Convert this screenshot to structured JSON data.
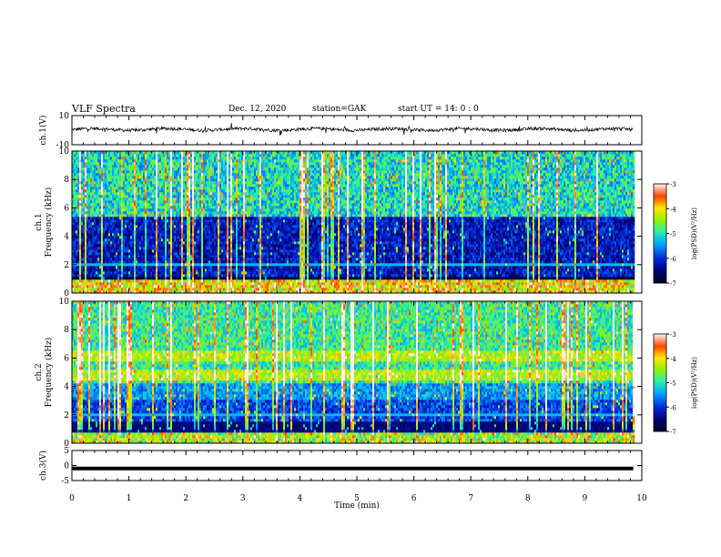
{
  "header": {
    "title": "VLF Spectra",
    "date": "Dec. 12, 2020",
    "station": "station=GAK",
    "start": "start  UT =   14: 0  : 0"
  },
  "chart_data": [
    {
      "type": "line",
      "name": "ch1-waveform",
      "ylabel": "ch.1(V)",
      "ylim": [
        -10,
        10
      ],
      "yticks": [
        "10",
        "-10"
      ],
      "xlim": [
        0,
        10
      ]
    },
    {
      "type": "heatmap",
      "name": "ch1-spectrogram",
      "ylabel": "ch.1\nFrequency (kHz)",
      "ylim": [
        0,
        10
      ],
      "yticks": [
        "0",
        "2",
        "4",
        "6",
        "8",
        "10"
      ],
      "xlim": [
        0,
        10
      ],
      "colorbar": {
        "label": "log(PSD)(V²/Hz)",
        "range": [
          -7,
          -3
        ],
        "ticks": [
          "-7",
          "-6",
          "-5",
          "-4",
          "-3"
        ]
      }
    },
    {
      "type": "heatmap",
      "name": "ch2-spectrogram",
      "ylabel": "ch.2\nFrequency (kHz)",
      "ylim": [
        0,
        10
      ],
      "yticks": [
        "0",
        "2",
        "4",
        "6",
        "8",
        "10"
      ],
      "xlim": [
        0,
        10
      ],
      "colorbar": {
        "label": "log(PSD)(V²/Hz)",
        "range": [
          -7,
          -3
        ],
        "ticks": [
          "-7",
          "-6",
          "-5",
          "-4",
          "-3"
        ]
      }
    },
    {
      "type": "line",
      "name": "ch3-waveform",
      "ylabel": "ch.3(V)",
      "ylim": [
        -5,
        5
      ],
      "yticks": [
        "5",
        "0",
        "-5"
      ],
      "xlim": [
        0,
        10
      ],
      "value": -1,
      "xlabel": "Time (min)",
      "xticks": [
        "0",
        "1",
        "2",
        "3",
        "4",
        "5",
        "6",
        "7",
        "8",
        "9",
        "10"
      ]
    }
  ]
}
